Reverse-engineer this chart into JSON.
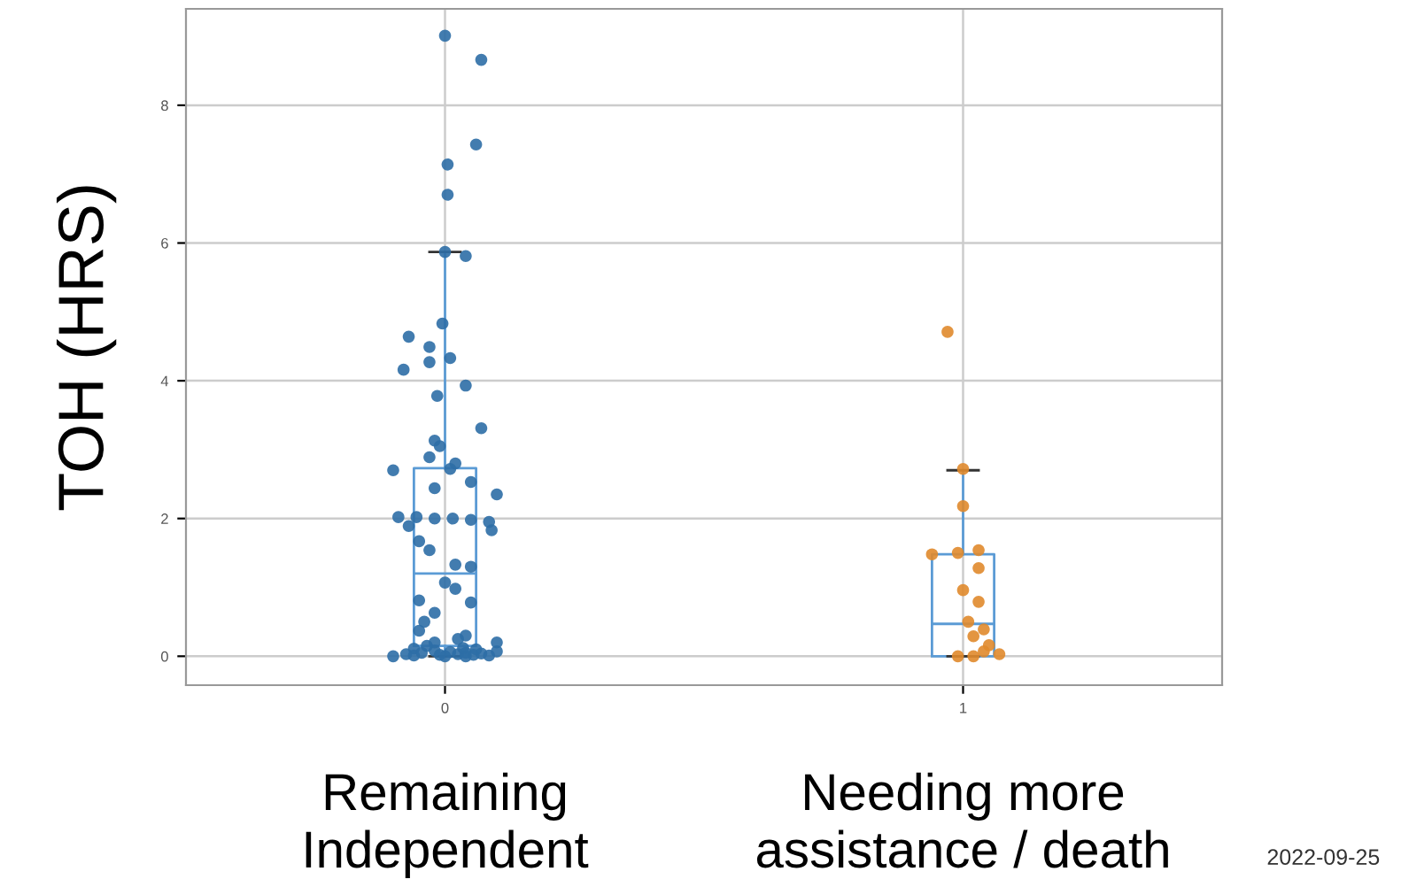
{
  "chart_data": {
    "type": "box",
    "ylabel": "TOH (HRS)",
    "x": [
      0,
      1
    ],
    "xlim": [
      -0.5,
      1.5
    ],
    "xticks": [
      0,
      1
    ],
    "boxes": [
      {
        "low": 0,
        "q1": 0.15,
        "median": 1.2,
        "q3": 2.73,
        "high": 5.87
      },
      {
        "low": 0,
        "q1": 0,
        "median": 0.47,
        "q3": 1.48,
        "high": 2.7
      }
    ],
    "series": [
      {
        "type": "scatter",
        "color": "#2e6ea6",
        "x": [
          0,
          0.07,
          0.06,
          0.005,
          0.005,
          0,
          0.04,
          -0.005,
          -0.07,
          -0.03,
          0.01,
          -0.03,
          -0.08,
          0.04,
          -0.015,
          0.07,
          -0.02,
          -0.01,
          -0.03,
          0.02,
          -0.1,
          0.01,
          0.05,
          -0.02,
          0.1,
          -0.09,
          -0.055,
          -0.02,
          0.015,
          0.05,
          0.085,
          -0.07,
          0.09,
          -0.05,
          -0.03,
          0.02,
          0.05,
          0,
          0.02,
          -0.05,
          0.05,
          -0.02,
          -0.04,
          -0.05,
          0.04,
          0.1,
          -0.06,
          -0.02,
          0.01,
          0.04,
          -0.045,
          0.07,
          -0.075,
          0.025,
          -0.01,
          0.055,
          -0.06,
          0.085,
          -0.1,
          0,
          0.04,
          0.06,
          -0.035,
          -0.02,
          0.025,
          0.035,
          0.1
        ],
        "values": [
          9.01,
          8.66,
          7.43,
          7.14,
          6.7,
          5.87,
          5.81,
          4.83,
          4.64,
          4.49,
          4.33,
          4.27,
          4.16,
          3.93,
          3.78,
          3.31,
          3.13,
          3.05,
          2.89,
          2.8,
          2.7,
          2.72,
          2.53,
          2.44,
          2.35,
          2.02,
          2.02,
          2.0,
          2.0,
          1.98,
          1.95,
          1.89,
          1.83,
          1.67,
          1.54,
          1.33,
          1.3,
          1.07,
          0.98,
          0.81,
          0.78,
          0.63,
          0.5,
          0.37,
          0.3,
          0.2,
          0.11,
          0.08,
          0.06,
          0.05,
          0.05,
          0.04,
          0.03,
          0.03,
          0.02,
          0.02,
          0.01,
          0.01,
          0,
          0,
          0,
          0.1,
          0.15,
          0.2,
          0.25,
          0.12,
          0.07
        ]
      },
      {
        "type": "scatter",
        "color": "#e08a2c",
        "x": [
          0.97,
          1,
          1,
          1.03,
          0.99,
          0.94,
          1.03,
          1,
          1.03,
          1.01,
          1.04,
          1.02,
          1.05,
          1.04,
          1.07,
          0.99,
          1.02
        ],
        "values": [
          4.71,
          2.72,
          2.18,
          1.54,
          1.5,
          1.48,
          1.28,
          0.96,
          0.79,
          0.5,
          0.39,
          0.29,
          0.16,
          0.07,
          0.03,
          0,
          0
        ]
      }
    ],
    "ylim": [
      -0.42,
      9.4
    ],
    "yticks": [
      0,
      2,
      4,
      6,
      8
    ],
    "grid": true,
    "annotations": [
      "Remaining\nIndependent",
      "Needing more\nassistance / death",
      "2022-09-25"
    ]
  }
}
